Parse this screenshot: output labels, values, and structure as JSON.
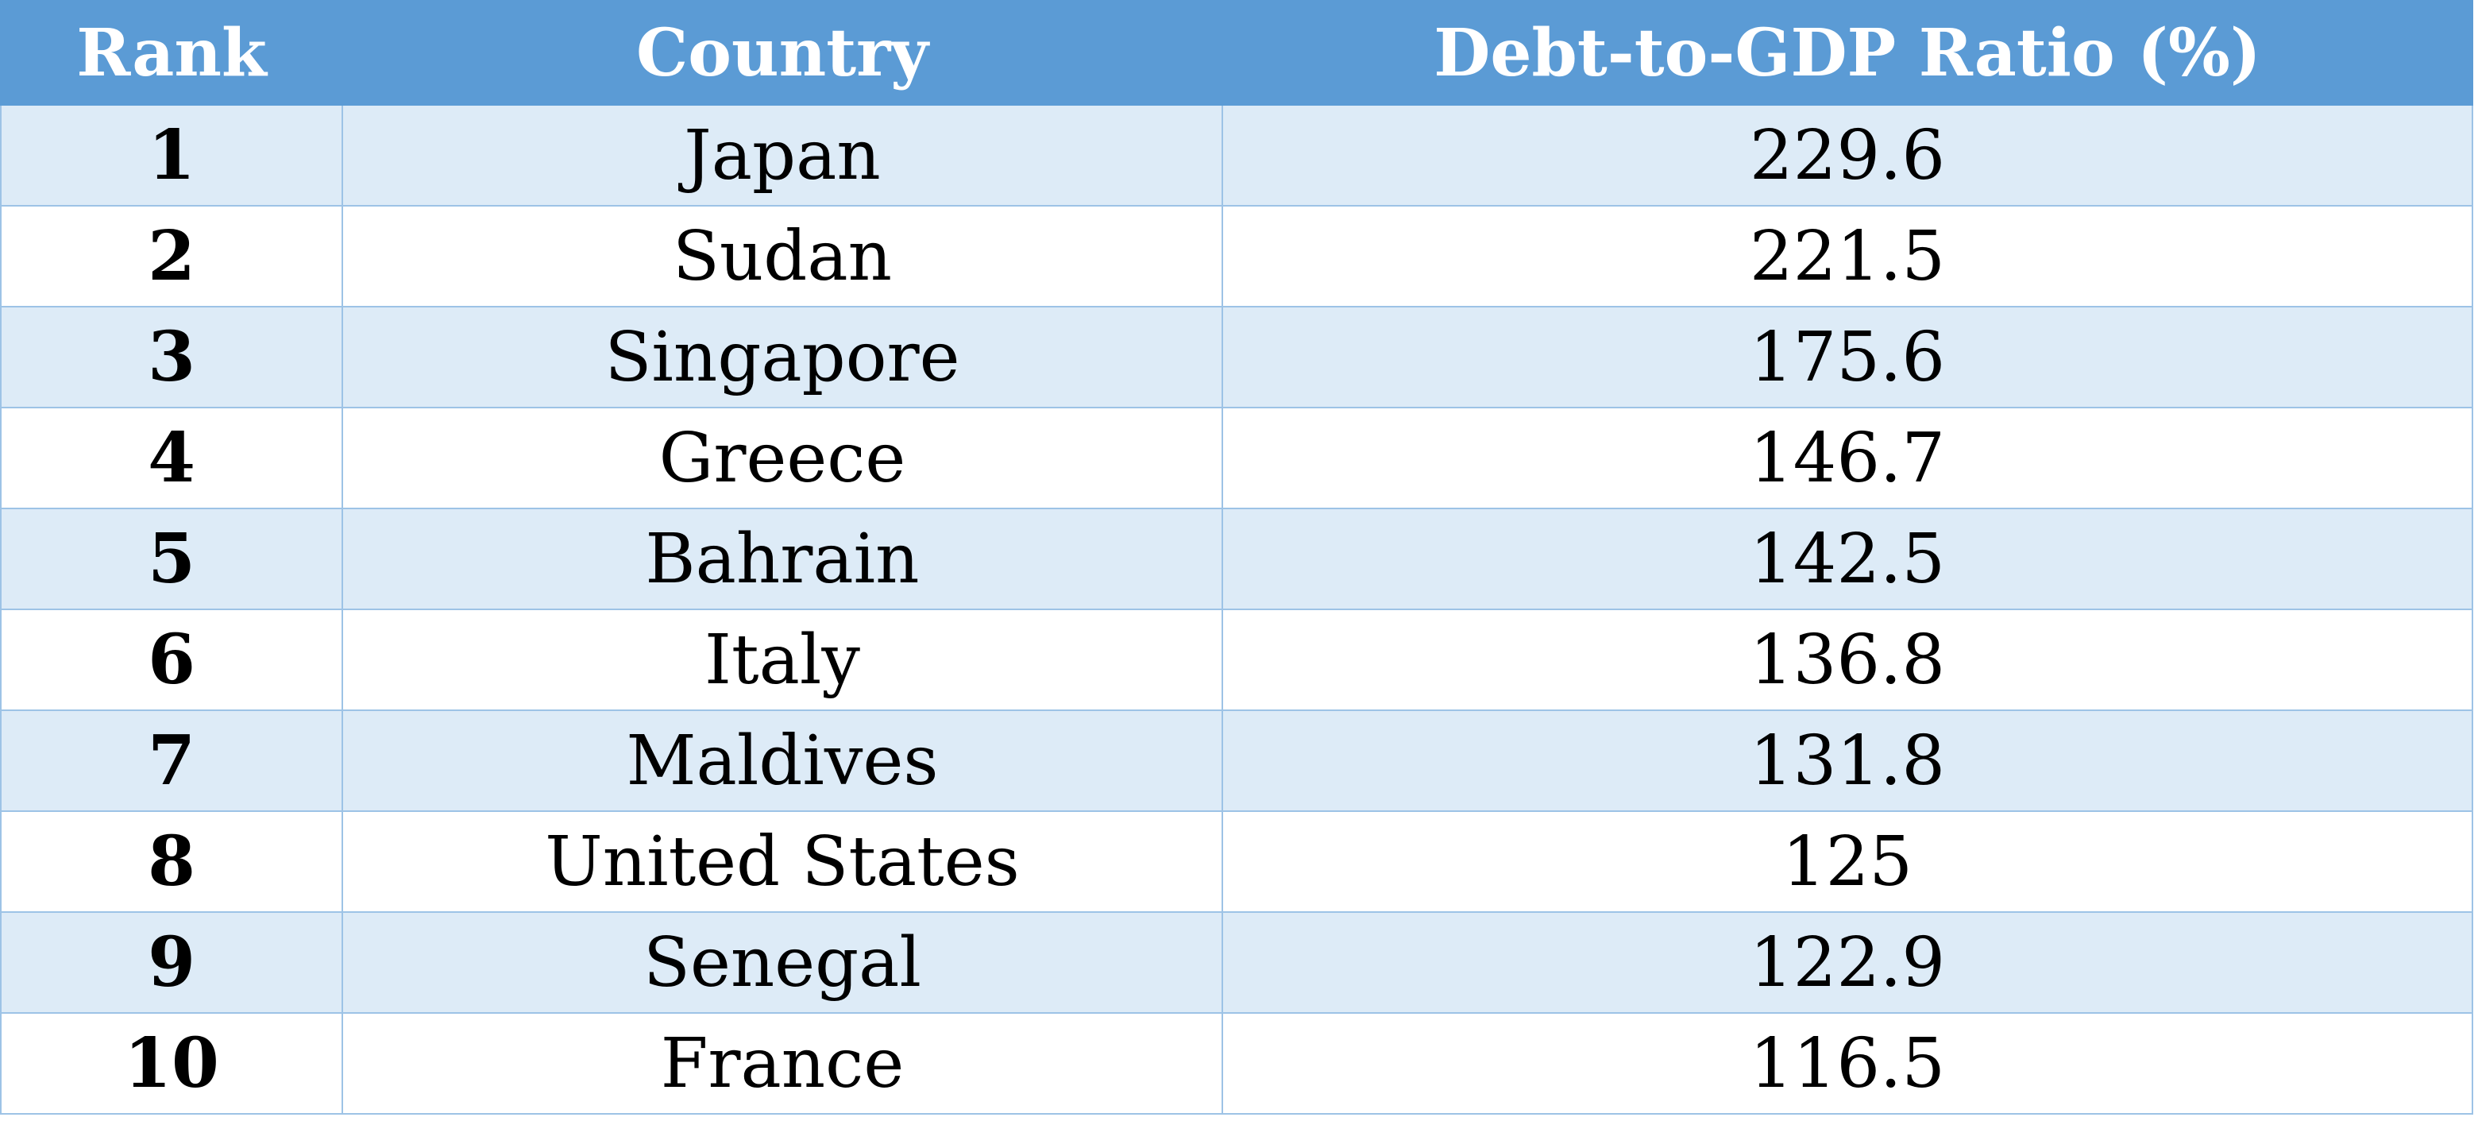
{
  "table": {
    "headers": [
      "Rank",
      "Country",
      "Debt-to-GDP Ratio (%)"
    ],
    "rows": [
      [
        1,
        "Japan",
        229.6
      ],
      [
        2,
        "Sudan",
        221.5
      ],
      [
        3,
        "Singapore",
        175.6
      ],
      [
        4,
        "Greece",
        146.7
      ],
      [
        5,
        "Bahrain",
        142.5
      ],
      [
        6,
        "Italy",
        136.8
      ],
      [
        7,
        "Maldives",
        131.8
      ],
      [
        8,
        "United States",
        125
      ],
      [
        9,
        "Senegal",
        122.9
      ],
      [
        10,
        "France",
        116.5
      ]
    ]
  }
}
